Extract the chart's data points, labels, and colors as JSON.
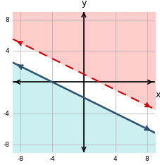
{
  "xlim": [
    -9,
    9
  ],
  "ylim": [
    -9,
    9
  ],
  "xticks": [
    -8,
    -4,
    0,
    4,
    8
  ],
  "yticks": [
    -8,
    -4,
    0,
    4,
    8
  ],
  "line1_slope": -0.5,
  "line1_intercept": 1,
  "line1_color": "#cc0000",
  "line1_dashed": true,
  "line1_shade_above": true,
  "line1_shade_color": "#ffcccc",
  "line2_slope": -0.5,
  "line2_intercept": -2,
  "line2_color": "#2f4f6f",
  "line2_dashed": false,
  "line2_shade_below": true,
  "line2_shade_color": "#ccf0f0",
  "grid_color": "#aaaaaa",
  "background_color": "#ffffff",
  "axis_color": "#000000",
  "xlabel": "x",
  "ylabel": "y"
}
